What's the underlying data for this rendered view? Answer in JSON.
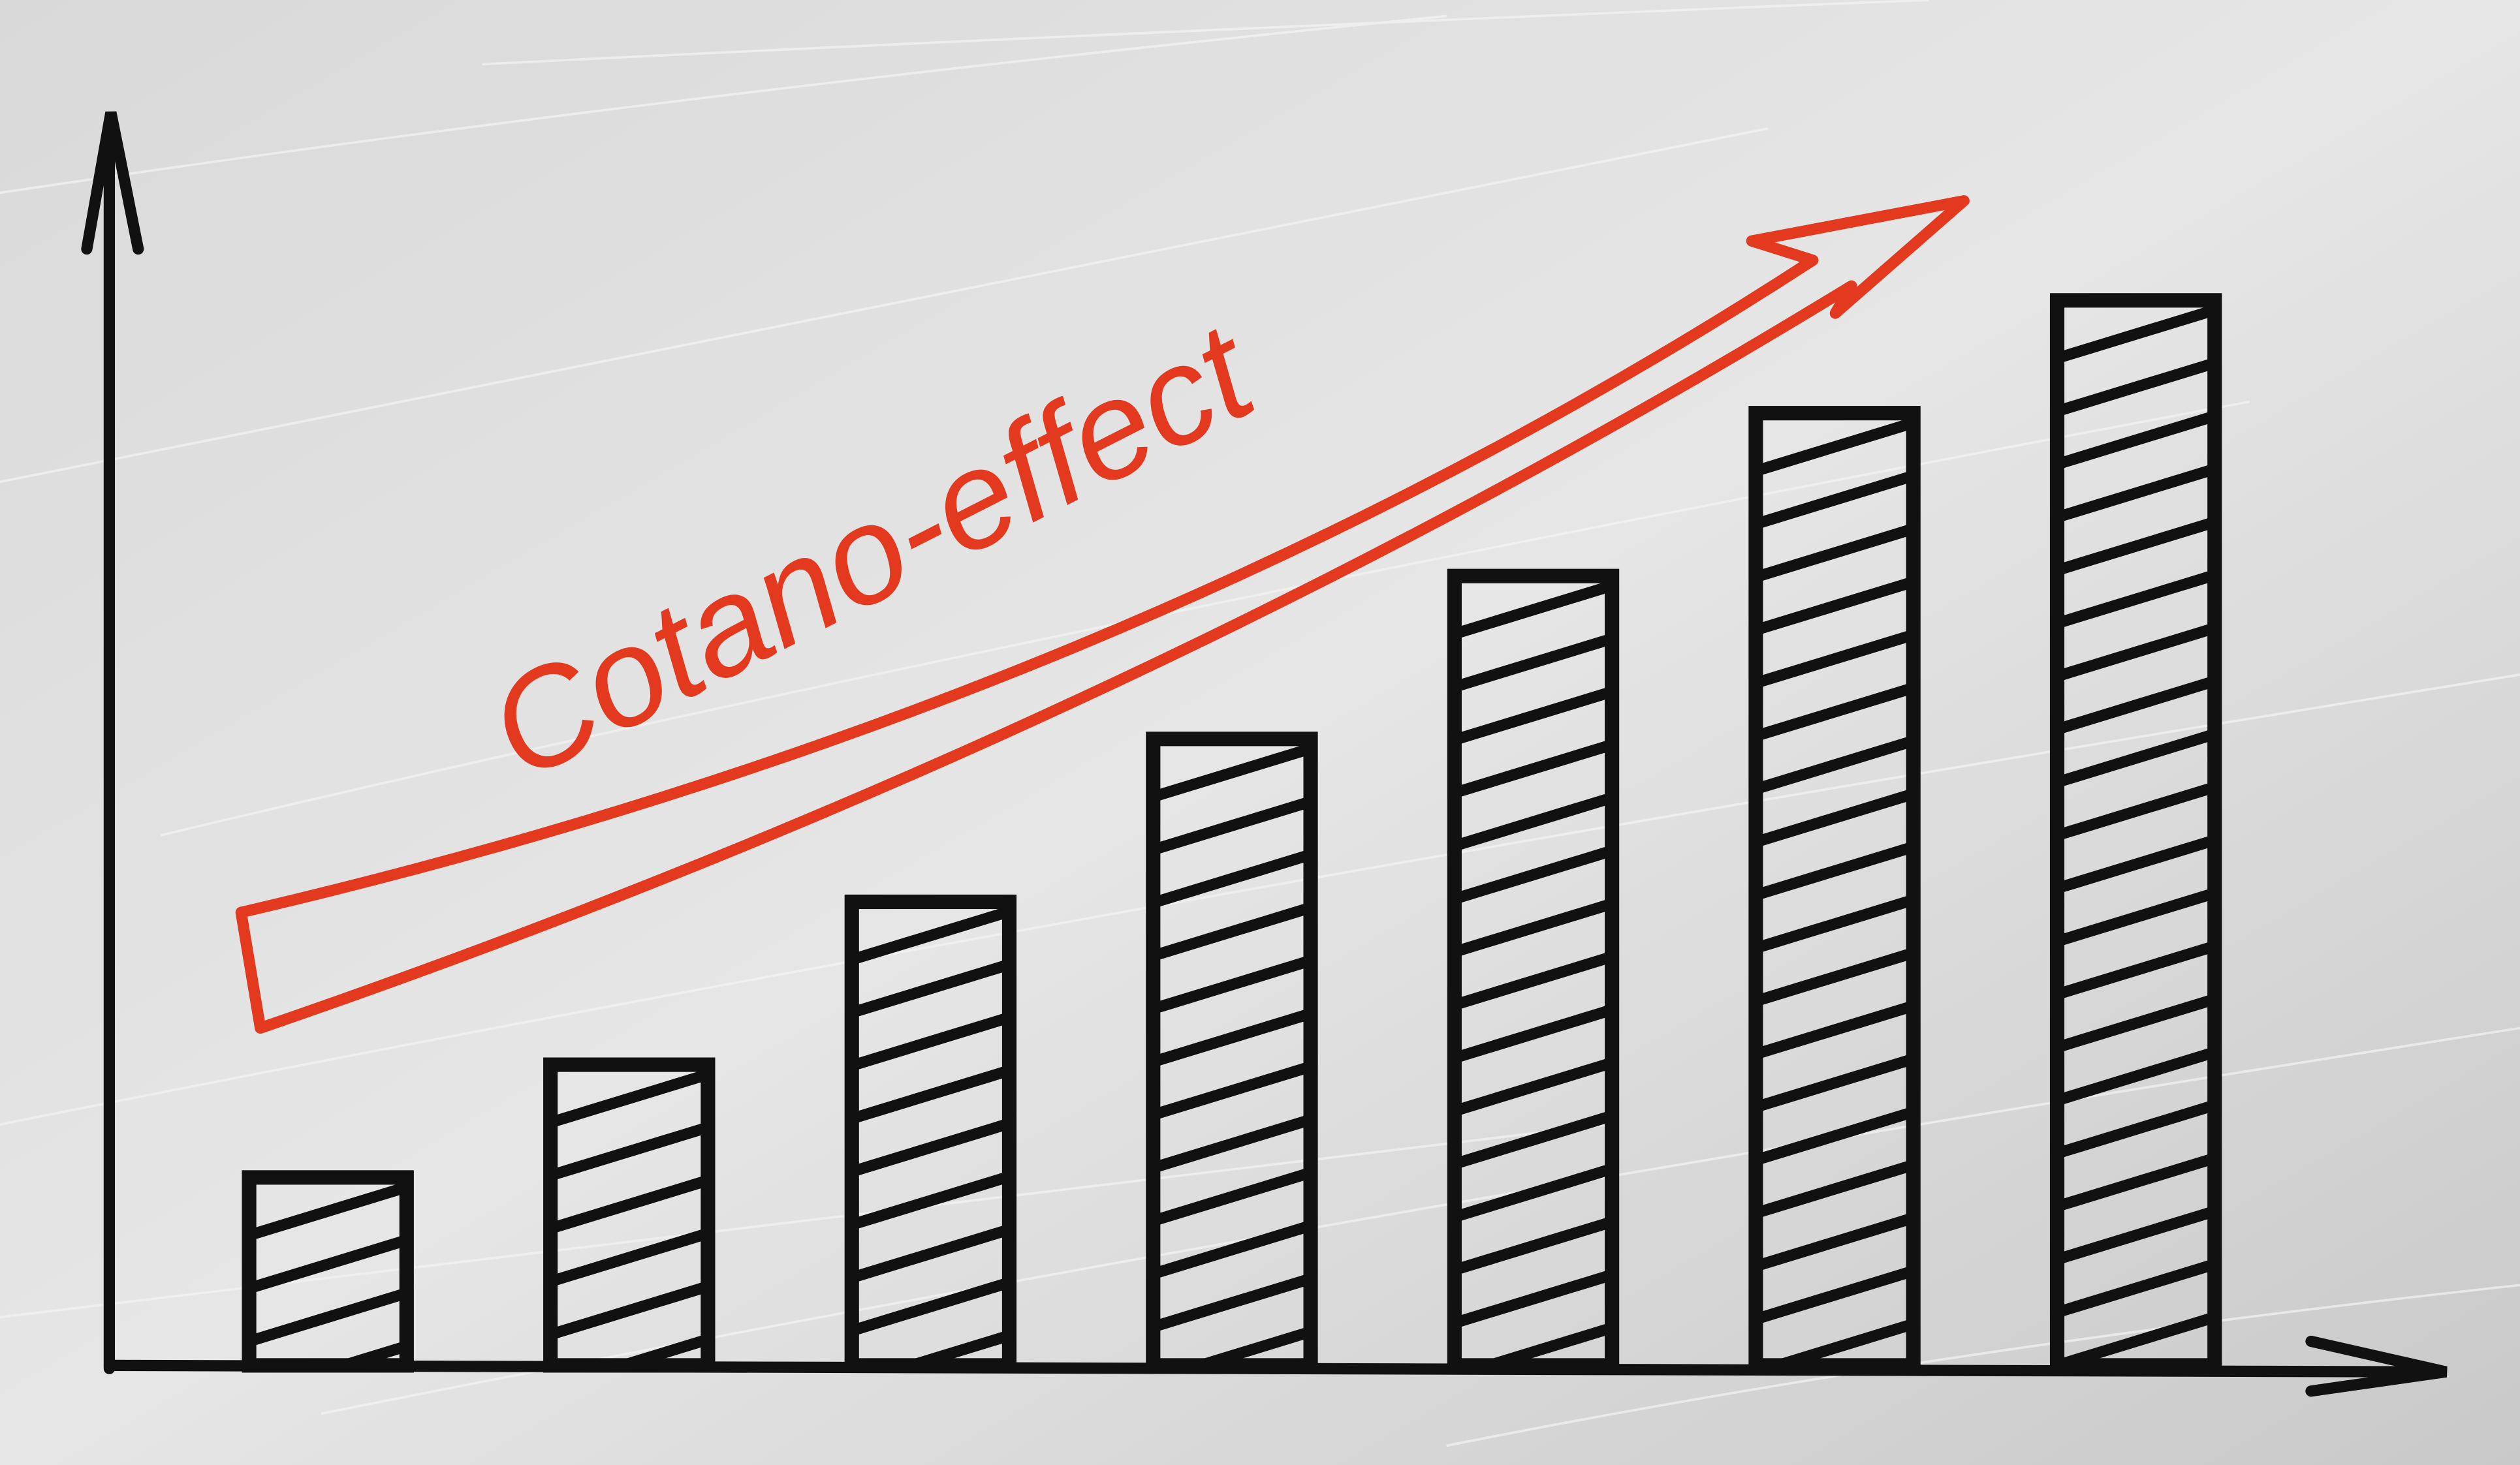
{
  "chart_data": {
    "type": "bar",
    "annotation": "Cotano-effect",
    "values": [
      15,
      24,
      37,
      50,
      63,
      76,
      85
    ],
    "color": "#111111",
    "annotation_color": "#e2391f",
    "ylim": [
      0,
      100
    ],
    "grid": false
  }
}
